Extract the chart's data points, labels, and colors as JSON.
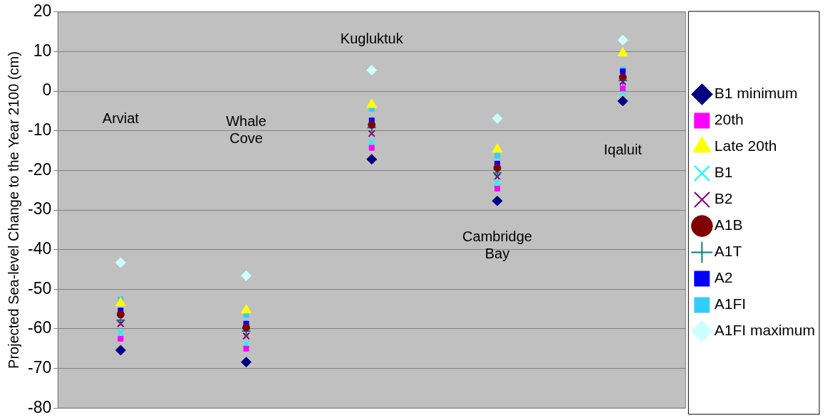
{
  "chart_data": {
    "type": "scatter",
    "ylabel": "Projected Sea-level Change to the Year 2100 (cm)",
    "categories": [
      null,
      null,
      null,
      null,
      null
    ],
    "tick_labels": "y",
    "ylim": [
      -80,
      20
    ],
    "yticks": [
      -80,
      -70,
      -60,
      -50,
      -40,
      -30,
      -20,
      -10,
      0,
      10,
      20
    ],
    "grid": "y",
    "legend": "right",
    "series": [
      {
        "name": "B1 minimum",
        "color": "#000080",
        "marker": "diamond",
        "values": [
          -65.4,
          -68.4,
          -17.2,
          -27.7,
          -2.5
        ]
      },
      {
        "name": "20th",
        "color": "#ff00ff",
        "marker": "square",
        "values": [
          -62.5,
          -65,
          -14.3,
          -24.6,
          0.7
        ]
      },
      {
        "name": "Late 20th",
        "color": "#ffff00",
        "marker": "triangle",
        "values": [
          -53.5,
          -55.3,
          -3.4,
          -14.7,
          9.6
        ]
      },
      {
        "name": "B1",
        "color": "#00ffff",
        "marker": "cross",
        "values": [
          -60.9,
          -63.8,
          -12.9,
          -23,
          -0.2
        ]
      },
      {
        "name": "B2",
        "color": "#800080",
        "marker": "cross",
        "values": [
          -58.7,
          -61.8,
          -10.7,
          -21.6,
          2.4
        ]
      },
      {
        "name": "A1B",
        "color": "#800000",
        "marker": "circle",
        "values": [
          -56.4,
          -59.7,
          -8.5,
          -19.4,
          3.5
        ]
      },
      {
        "name": "A1T",
        "color": "#008080",
        "marker": "plus",
        "values": [
          -57.8,
          -60.6,
          -9.2,
          -20.6,
          2.7
        ]
      },
      {
        "name": "A2",
        "color": "#0000ff",
        "marker": "square",
        "values": [
          -55.4,
          -58.7,
          -7.4,
          -18.3,
          5
        ]
      },
      {
        "name": "A1FI",
        "color": "#33ccff",
        "marker": "square",
        "values": [
          -52.6,
          -56.5,
          -4.5,
          -16.3,
          5.4
        ]
      },
      {
        "name": "A1FI maximum",
        "color": "#ccffff",
        "marker": "diamond",
        "values": [
          -43.3,
          -46.6,
          5.3,
          -6.9,
          12.9
        ]
      }
    ],
    "annotations": [
      "Arviat",
      "Whale Cove",
      "Kugluktuk",
      "Cambridge Bay",
      "Iqaluit"
    ]
  }
}
